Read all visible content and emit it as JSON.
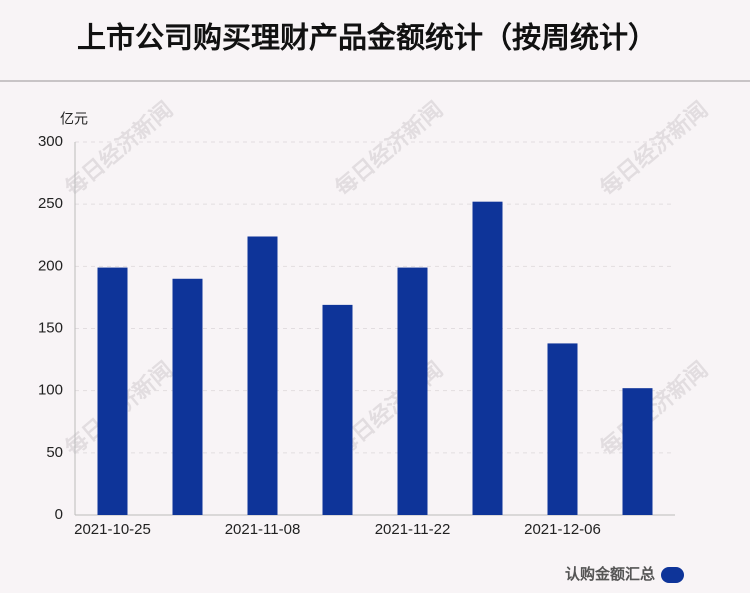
{
  "chart_data": {
    "type": "bar",
    "title": "上市公司购买理财产品金额统计（按周统计）",
    "y_unit": "亿元",
    "watermark": "每日经济新闻",
    "categories": [
      "2021-10-25",
      null,
      "2021-11-08",
      null,
      "2021-11-22",
      null,
      "2021-12-06",
      null
    ],
    "series": [
      {
        "name": "认购金额汇总",
        "color": "#0e3499",
        "values": [
          199,
          190,
          224,
          169,
          199,
          252,
          138,
          102
        ]
      }
    ],
    "ylim": [
      0,
      300
    ],
    "yticks": [
      0,
      50,
      100,
      150,
      200,
      250,
      300
    ],
    "grid": true,
    "legend": "bottom-right"
  }
}
